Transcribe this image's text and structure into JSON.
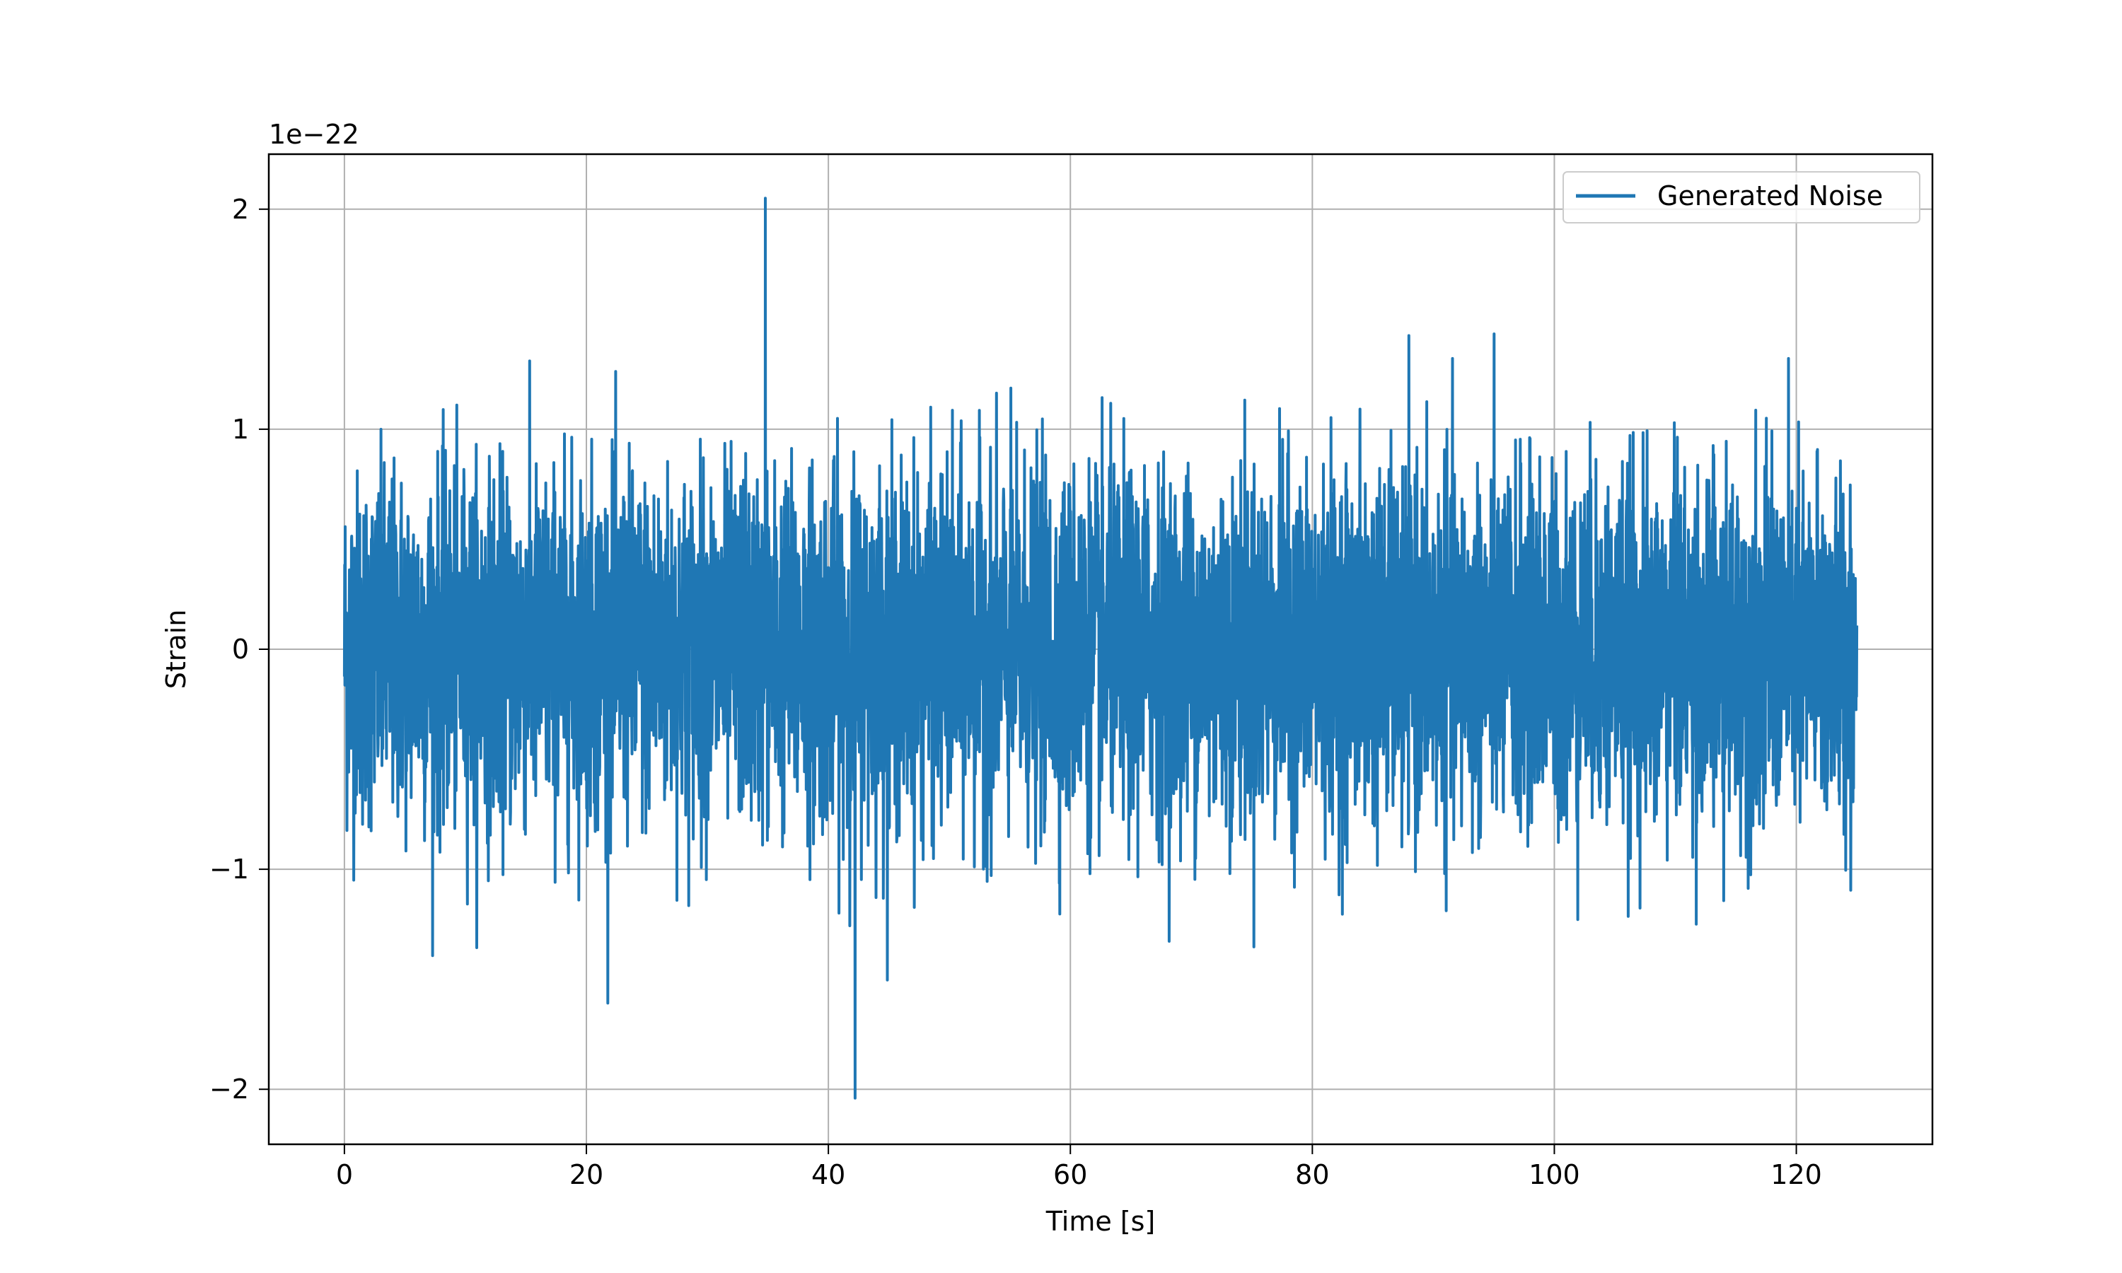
{
  "chart_data": {
    "type": "line",
    "title": "",
    "xlabel": "Time [s]",
    "ylabel": "Strain",
    "y_offset_text": "1e−22",
    "y_scale_factor": 1e-22,
    "xlim": [
      -6.25,
      131.25
    ],
    "ylim": [
      -2.25,
      2.25
    ],
    "x_ticks": [
      0,
      20,
      40,
      60,
      80,
      100,
      120
    ],
    "x_tick_labels": [
      "0",
      "20",
      "40",
      "60",
      "80",
      "100",
      "120"
    ],
    "y_ticks": [
      -2,
      -1,
      0,
      1,
      2
    ],
    "y_tick_labels": [
      "−2",
      "−1",
      "0",
      "1",
      "2"
    ],
    "grid": true,
    "legend_position": "upper-right",
    "series": [
      {
        "name": "Generated Noise",
        "color": "#1f77b4",
        "x_start": 0,
        "x_end": 125,
        "distribution": "gaussian",
        "std": 0.4,
        "typical_max": 1.7,
        "typical_min": -1.7,
        "max_value": 2.05,
        "max_at": 34.8,
        "min_value": -2.04,
        "min_at": 42.2
      }
    ]
  }
}
